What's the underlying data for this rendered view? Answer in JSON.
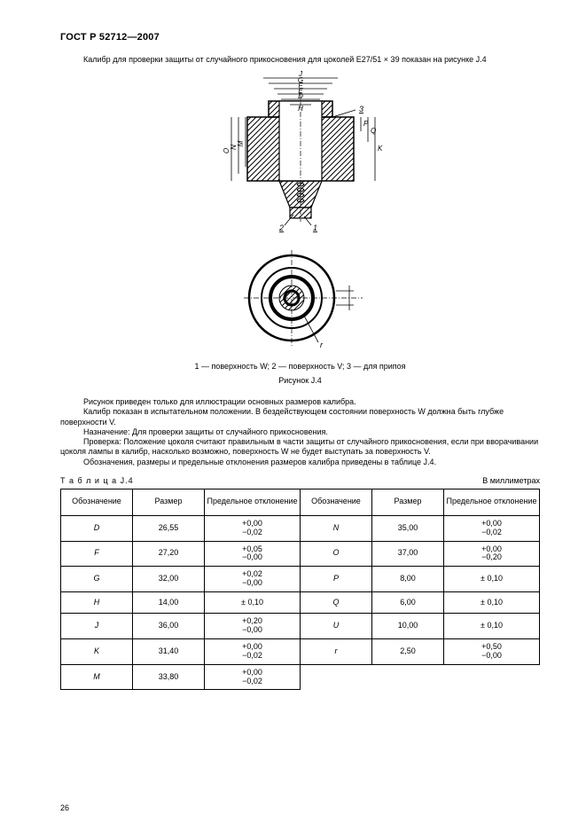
{
  "header": {
    "doc_id": "ГОСТ Р 52712—2007"
  },
  "intro_text": "Калибр для проверки защиты от случайного прикосновения для цоколей E27/51 × 39 показан на рисунке J.4",
  "figure": {
    "caption": "1 — поверхность W; 2 — поверхность V; 3 — для припоя",
    "label": "Рисунок J.4",
    "dim_labels_top": [
      "J",
      "G",
      "F",
      "E",
      "D",
      "H"
    ],
    "dim_labels_left": [
      "O",
      "N",
      "M"
    ],
    "dim_labels_right": [
      "P",
      "Q",
      "K"
    ],
    "callouts": [
      "1",
      "2",
      "3"
    ],
    "bottom_label": "r"
  },
  "paragraphs": [
    "Рисунок приведен только для иллюстрации основных размеров калибра.",
    "Калибр показан в испытательном положении. В бездействующем состоянии поверхность W должна быть глубже поверхности V.",
    "Назначение: Для проверки защиты от случайного прикосновения.",
    "Проверка: Положение цоколя считают правильным в части защиты от случайного прикосновения, если при вворачивании цоколя лампы в калибр, насколько возможно, поверхность W не будет выступать за поверхность V.",
    "Обозначения, размеры и предельные отклонения размеров калибра приведены в таблице J.4."
  ],
  "table_meta": {
    "label": "Т а б л и ц а   J.4",
    "units": "В миллиметрах",
    "columns": [
      "Обозначение",
      "Размер",
      "Предельное отклонение",
      "Обозначение",
      "Размер",
      "Предельное отклонение"
    ],
    "col_widths": [
      "15%",
      "15%",
      "20%",
      "15%",
      "15%",
      "20%"
    ]
  },
  "table_rows": [
    {
      "l_sym": "D",
      "l_val": "26,55",
      "l_tol": "+0,00\n−0,02",
      "r_sym": "N",
      "r_val": "35,00",
      "r_tol": "+0,00\n−0,02"
    },
    {
      "l_sym": "F",
      "l_val": "27,20",
      "l_tol": "+0,05\n−0,00",
      "r_sym": "O",
      "r_val": "37,00",
      "r_tol": "+0,00\n−0,20"
    },
    {
      "l_sym": "G",
      "l_val": "32,00",
      "l_tol": "+0,02\n−0,00",
      "r_sym": "P",
      "r_val": "8,00",
      "r_tol": "± 0,10"
    },
    {
      "l_sym": "H",
      "l_val": "14,00",
      "l_tol": "± 0,10",
      "r_sym": "Q",
      "r_val": "6,00",
      "r_tol": "± 0,10"
    },
    {
      "l_sym": "J",
      "l_val": "36,00",
      "l_tol": "+0,20\n−0,00",
      "r_sym": "U",
      "r_val": "10,00",
      "r_tol": "± 0,10"
    },
    {
      "l_sym": "K",
      "l_val": "31,40",
      "l_tol": "+0,00\n−0,02",
      "r_sym": "r",
      "r_val": "2,50",
      "r_tol": "+0,50\n−0,00"
    },
    {
      "l_sym": "M",
      "l_val": "33,80",
      "l_tol": "+0,00\n−0,02",
      "r_sym": "",
      "r_val": "",
      "r_tol": ""
    }
  ],
  "page_num": "26"
}
